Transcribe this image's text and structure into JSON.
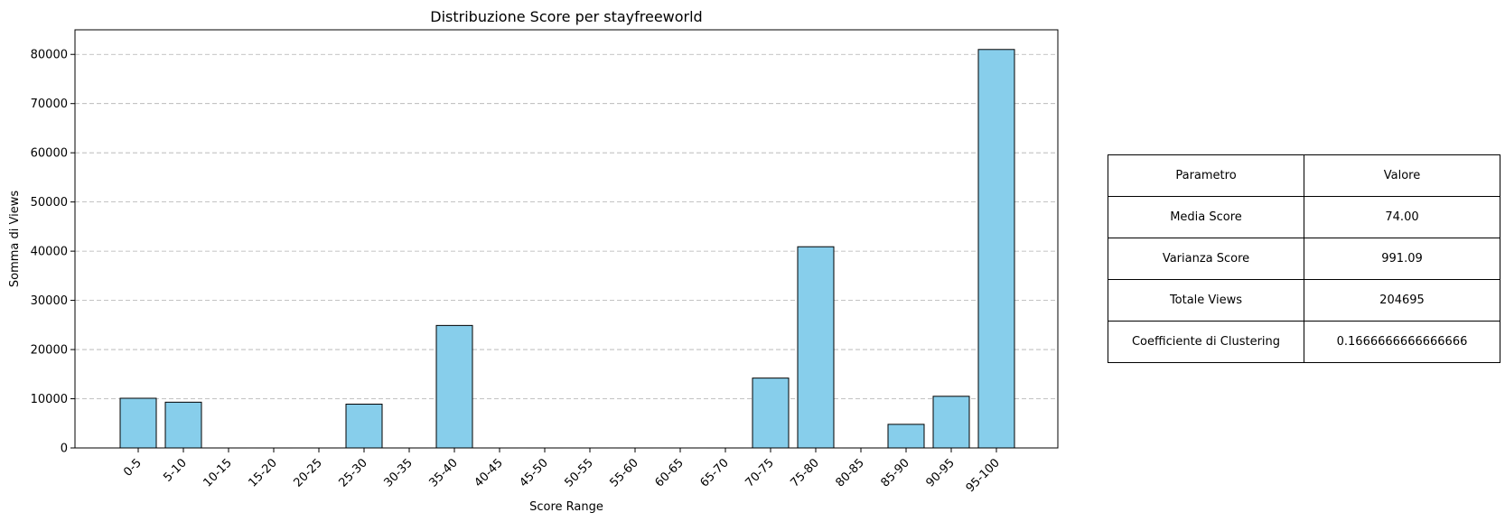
{
  "chart_data": {
    "type": "bar",
    "title": "Distribuzione Score per stayfreeworld",
    "xlabel": "Score Range",
    "ylabel": "Somma di Views",
    "categories": [
      "0-5",
      "5-10",
      "10-15",
      "15-20",
      "20-25",
      "25-30",
      "30-35",
      "35-40",
      "40-45",
      "45-50",
      "50-55",
      "55-60",
      "60-65",
      "65-70",
      "70-75",
      "75-80",
      "80-85",
      "85-90",
      "90-95",
      "95-100"
    ],
    "values": [
      10100,
      9300,
      0,
      0,
      0,
      8900,
      0,
      24900,
      0,
      0,
      0,
      0,
      0,
      0,
      14200,
      40900,
      0,
      4800,
      10500,
      81000
    ],
    "ylim": [
      0,
      85000
    ],
    "yticks": [
      0,
      10000,
      20000,
      30000,
      40000,
      50000,
      60000,
      70000,
      80000
    ],
    "ytick_labels": [
      "0",
      "10000",
      "20000",
      "30000",
      "40000",
      "50000",
      "60000",
      "70000",
      "80000"
    ],
    "grid": "y-dashed",
    "bar_color": "#87ceeb",
    "edge_color": "#000000"
  },
  "table": {
    "header": [
      "Parametro",
      "Valore"
    ],
    "rows": [
      [
        "Media Score",
        "74.00"
      ],
      [
        "Varianza Score",
        "991.09"
      ],
      [
        "Totale Views",
        "204695"
      ],
      [
        "Coefficiente di Clustering",
        "0.1666666666666666"
      ]
    ]
  }
}
